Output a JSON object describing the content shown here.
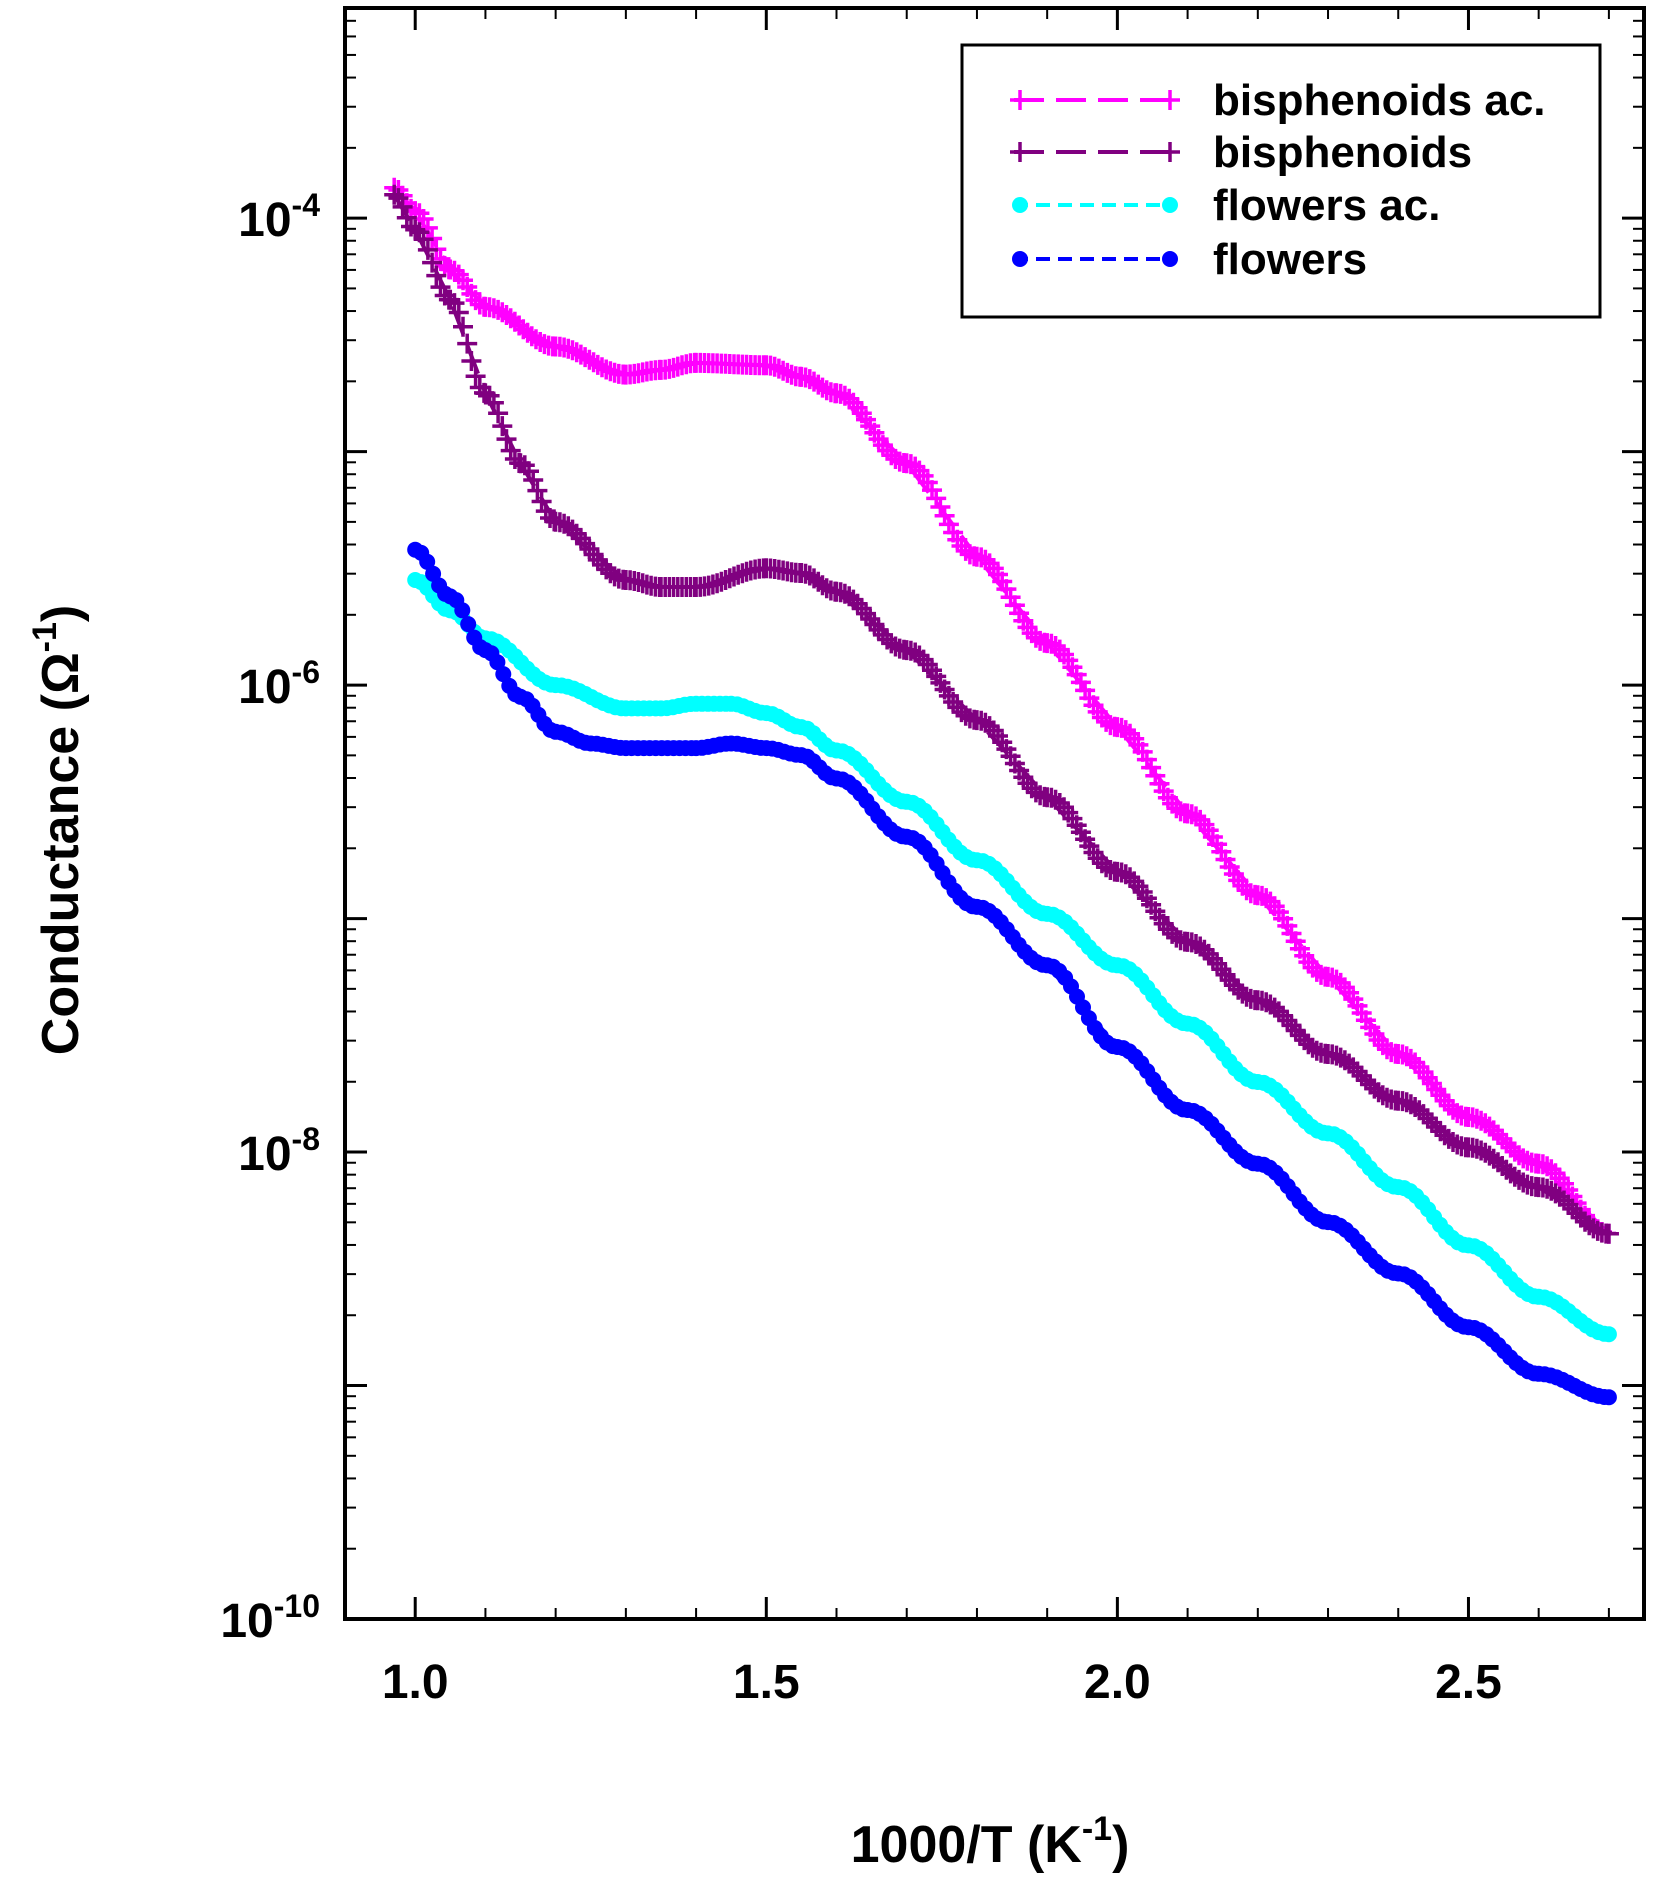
{
  "chart_data": {
    "type": "line",
    "xlabel": "1000/T (K",
    "xlabel_sup": "-1",
    "xlabel_end": ")",
    "ylabel": "Conductance (Ω",
    "ylabel_sup": "-1",
    "ylabel_end": ")",
    "xlim": [
      0.9,
      2.75
    ],
    "ylim_log10": [
      -10,
      -3.1
    ],
    "yscale": "log",
    "grid": false,
    "legend_position": "top-right",
    "x_ticks": [
      {
        "value": 1.0,
        "label": "1.0"
      },
      {
        "value": 1.5,
        "label": "1.5"
      },
      {
        "value": 2.0,
        "label": "2.0"
      },
      {
        "value": 2.5,
        "label": "2.5"
      }
    ],
    "y_ticks": [
      {
        "exp": -4,
        "base": "10",
        "sup": "-4"
      },
      {
        "exp": -6,
        "base": "10",
        "sup": "-6"
      },
      {
        "exp": -8,
        "base": "10",
        "sup": "-8"
      },
      {
        "exp": -10,
        "base": "10",
        "sup": "-10"
      }
    ],
    "series": [
      {
        "name": "bisphenoids ac.",
        "color": "#ff00ff",
        "marker": "plus",
        "line": "long-dash",
        "x": [
          0.97,
          1.0,
          1.05,
          1.1,
          1.2,
          1.3,
          1.35,
          1.4,
          1.5,
          1.55,
          1.6,
          1.7,
          1.8,
          1.9,
          2.0,
          2.1,
          2.2,
          2.3,
          2.4,
          2.5,
          2.6,
          2.7
        ],
        "log10_y": [
          -3.87,
          -3.97,
          -4.22,
          -4.38,
          -4.55,
          -4.67,
          -4.65,
          -4.62,
          -4.63,
          -4.68,
          -4.75,
          -5.05,
          -5.45,
          -5.82,
          -6.18,
          -6.55,
          -6.9,
          -7.25,
          -7.58,
          -7.85,
          -8.05,
          -8.35
        ]
      },
      {
        "name": "bisphenoids",
        "color": "#800080",
        "marker": "plus",
        "line": "long-dash",
        "x": [
          0.97,
          1.0,
          1.05,
          1.1,
          1.15,
          1.2,
          1.3,
          1.35,
          1.4,
          1.5,
          1.55,
          1.6,
          1.7,
          1.8,
          1.9,
          2.0,
          2.1,
          2.2,
          2.3,
          2.4,
          2.5,
          2.6,
          2.7
        ],
        "log10_y": [
          -3.9,
          -4.05,
          -4.35,
          -4.75,
          -5.05,
          -5.3,
          -5.55,
          -5.58,
          -5.58,
          -5.5,
          -5.52,
          -5.6,
          -5.85,
          -6.15,
          -6.48,
          -6.8,
          -7.1,
          -7.35,
          -7.58,
          -7.78,
          -7.98,
          -8.15,
          -8.35
        ]
      },
      {
        "name": "flowers ac.",
        "color": "#00ffff",
        "marker": "circle",
        "line": "short-dash",
        "x": [
          1.0,
          1.05,
          1.1,
          1.2,
          1.3,
          1.35,
          1.4,
          1.45,
          1.5,
          1.55,
          1.6,
          1.7,
          1.8,
          1.9,
          2.0,
          2.1,
          2.2,
          2.3,
          2.4,
          2.5,
          2.6,
          2.7
        ],
        "log10_y": [
          -5.55,
          -5.68,
          -5.8,
          -6.0,
          -6.1,
          -6.1,
          -6.08,
          -6.08,
          -6.12,
          -6.18,
          -6.28,
          -6.5,
          -6.75,
          -6.98,
          -7.2,
          -7.45,
          -7.7,
          -7.92,
          -8.15,
          -8.4,
          -8.62,
          -8.78
        ]
      },
      {
        "name": "flowers",
        "color": "#0000ff",
        "marker": "circle",
        "line": "short-dash",
        "x": [
          1.0,
          1.05,
          1.1,
          1.15,
          1.2,
          1.25,
          1.3,
          1.4,
          1.45,
          1.5,
          1.55,
          1.6,
          1.7,
          1.8,
          1.9,
          2.0,
          2.1,
          2.2,
          2.3,
          2.4,
          2.5,
          2.6,
          2.7
        ],
        "log10_y": [
          -5.42,
          -5.62,
          -5.85,
          -6.05,
          -6.2,
          -6.25,
          -6.27,
          -6.27,
          -6.25,
          -6.27,
          -6.3,
          -6.4,
          -6.65,
          -6.95,
          -7.2,
          -7.55,
          -7.82,
          -8.05,
          -8.3,
          -8.52,
          -8.75,
          -8.95,
          -9.05
        ]
      }
    ]
  }
}
